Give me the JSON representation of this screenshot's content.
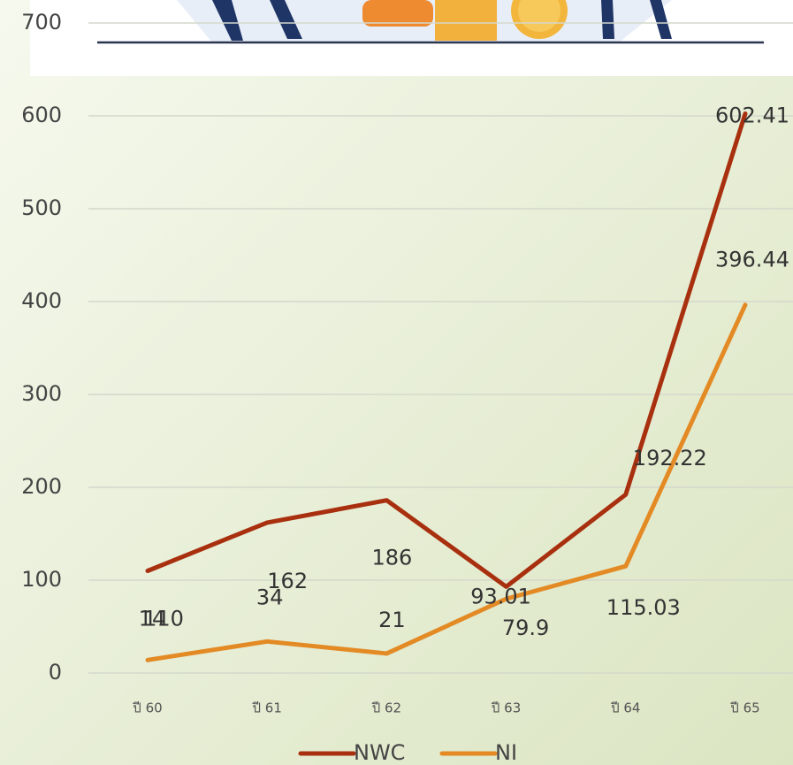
{
  "chart_data": {
    "type": "line",
    "categories": [
      "ปี 60",
      "ปี 61",
      "ปี 62",
      "ปี 63",
      "ปี 64",
      "ปี 65"
    ],
    "series": [
      {
        "name": "NWC",
        "color": "#a8300f",
        "values": [
          110,
          162,
          186,
          93.01,
          192.22,
          602.41
        ]
      },
      {
        "name": "NI",
        "color": "#e38a25",
        "values": [
          14,
          34,
          21,
          79.9,
          115.03,
          396.44
        ]
      }
    ],
    "ylim": [
      0,
      700
    ],
    "yticks": [
      0,
      100,
      200,
      300,
      400,
      500,
      600,
      700
    ],
    "grid": true,
    "legend": "bottom"
  }
}
